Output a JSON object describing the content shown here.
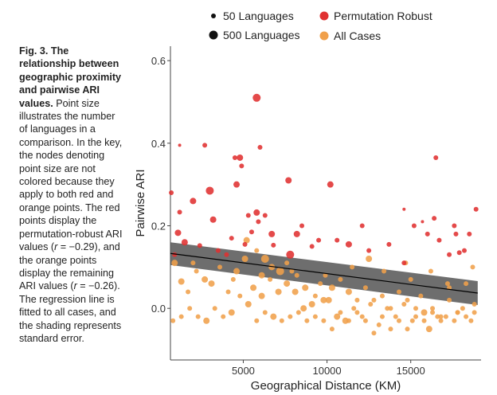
{
  "caption": {
    "figure_label": "Fig. 3.",
    "bold_title": "The relationship between geographic proximity and pairwise ARI values.",
    "body_part1": "Point size illustrates the number of languages in a comparison. In the key, the nodes denoting point size are not colored because they apply to both red and orange points. The red points display the permutation-robust ARI values (",
    "r_symbol": "r",
    "r_red": " = −0.29",
    "body_part2": "), and the orange points display the remaining ARI values (",
    "r_orange": " = −0.26",
    "body_part3": "). The regression line is fitted to all cases, and the shading represents standard error."
  },
  "legend": {
    "size_small_label": "50 Languages",
    "size_large_label": "500 Languages",
    "red_label": "Permutation Robust",
    "orange_label": "All Cases"
  },
  "colors": {
    "red": "#e03131",
    "orange": "#f0a04b",
    "ribbon": "#555555",
    "line": "#000000"
  },
  "chart_data": {
    "type": "scatter",
    "xlabel": "Geographical Distance (KM)",
    "ylabel": "Pairwise ARI",
    "xlim": [
      650,
      19200
    ],
    "ylim": [
      -0.125,
      0.635
    ],
    "xticks": [
      5000,
      10000,
      15000
    ],
    "xtick_labels": [
      "5000",
      "10000",
      "15000"
    ],
    "yticks": [
      0.0,
      0.2,
      0.4,
      0.6
    ],
    "ytick_labels": [
      "0.0",
      "0.2",
      "0.4",
      "0.6"
    ],
    "grid": false,
    "legend_position": "top",
    "regression": {
      "x": [
        650,
        19000
      ],
      "y": [
        0.133,
        0.037
      ],
      "se_upper": [
        0.16,
        0.066
      ],
      "se_lower": [
        0.105,
        0.008
      ]
    },
    "series": [
      {
        "name": "Permutation Robust",
        "color": "red",
        "points": [
          [
            5800,
            0.51,
            5
          ],
          [
            4800,
            0.365,
            4
          ],
          [
            2700,
            0.395,
            3
          ],
          [
            1200,
            0.395,
            2
          ],
          [
            6000,
            0.39,
            3
          ],
          [
            4500,
            0.365,
            3
          ],
          [
            4900,
            0.345,
            3
          ],
          [
            3000,
            0.285,
            5
          ],
          [
            4600,
            0.3,
            4
          ],
          [
            7700,
            0.31,
            4
          ],
          [
            10200,
            0.3,
            4
          ],
          [
            700,
            0.28,
            3
          ],
          [
            2000,
            0.26,
            4
          ],
          [
            5800,
            0.232,
            4
          ],
          [
            6300,
            0.225,
            3
          ],
          [
            1200,
            0.233,
            3
          ],
          [
            5300,
            0.225,
            3
          ],
          [
            3200,
            0.215,
            4
          ],
          [
            5900,
            0.21,
            3
          ],
          [
            1100,
            0.183,
            4
          ],
          [
            8500,
            0.2,
            3
          ],
          [
            12100,
            0.2,
            3
          ],
          [
            16400,
            0.218,
            3
          ],
          [
            16500,
            0.365,
            3
          ],
          [
            18900,
            0.24,
            3
          ],
          [
            5500,
            0.185,
            3
          ],
          [
            6700,
            0.18,
            4
          ],
          [
            8200,
            0.18,
            4
          ],
          [
            9500,
            0.165,
            3
          ],
          [
            11300,
            0.155,
            4
          ],
          [
            13700,
            0.155,
            3
          ],
          [
            10600,
            0.165,
            3
          ],
          [
            4300,
            0.17,
            3
          ],
          [
            1500,
            0.16,
            4
          ],
          [
            7800,
            0.13,
            5
          ],
          [
            2400,
            0.152,
            3
          ],
          [
            3500,
            0.14,
            3
          ],
          [
            4000,
            0.13,
            3
          ],
          [
            5100,
            0.155,
            3
          ],
          [
            6800,
            0.153,
            3
          ],
          [
            9100,
            0.15,
            3
          ],
          [
            12500,
            0.14,
            3
          ],
          [
            14600,
            0.11,
            3
          ],
          [
            15200,
            0.2,
            3
          ],
          [
            16000,
            0.18,
            3
          ],
          [
            16700,
            0.165,
            3
          ],
          [
            17300,
            0.13,
            3
          ],
          [
            17700,
            0.18,
            3
          ],
          [
            18500,
            0.18,
            3
          ],
          [
            17600,
            0.2,
            3
          ],
          [
            18200,
            0.14,
            3
          ],
          [
            15700,
            0.21,
            2
          ],
          [
            14600,
            0.24,
            2
          ],
          [
            17900,
            0.135,
            3
          ],
          [
            900,
            0.13,
            3
          ]
        ]
      },
      {
        "name": "All Cases",
        "color": "orange",
        "points": [
          [
            5200,
            0.165,
            4
          ],
          [
            5800,
            0.14,
            3
          ],
          [
            6300,
            0.12,
            5
          ],
          [
            6700,
            0.1,
            4
          ],
          [
            7200,
            0.09,
            5
          ],
          [
            7600,
            0.06,
            4
          ],
          [
            8200,
            0.08,
            3
          ],
          [
            8700,
            0.05,
            4
          ],
          [
            9300,
            0.03,
            3
          ],
          [
            9800,
            0.02,
            4
          ],
          [
            10300,
            0.05,
            4
          ],
          [
            10800,
            0.07,
            3
          ],
          [
            11300,
            0.04,
            4
          ],
          [
            11800,
            0.02,
            3
          ],
          [
            12300,
            0.05,
            3
          ],
          [
            12800,
            0.02,
            3
          ],
          [
            13300,
            0.03,
            3
          ],
          [
            13800,
            0.0,
            3
          ],
          [
            14300,
            0.04,
            3
          ],
          [
            14800,
            0.02,
            3
          ],
          [
            15300,
            0.0,
            3
          ],
          [
            15800,
            -0.01,
            4
          ],
          [
            16300,
            0.0,
            3
          ],
          [
            16800,
            -0.02,
            3
          ],
          [
            17300,
            0.05,
            3
          ],
          [
            17800,
            -0.01,
            3
          ],
          [
            18300,
            -0.02,
            3
          ],
          [
            18800,
            0.01,
            3
          ],
          [
            900,
            0.11,
            4
          ],
          [
            1300,
            0.065,
            4
          ],
          [
            1700,
            0.04,
            3
          ],
          [
            2200,
            0.09,
            3
          ],
          [
            2700,
            0.07,
            4
          ],
          [
            3100,
            0.06,
            4
          ],
          [
            3600,
            0.1,
            3
          ],
          [
            4100,
            0.04,
            3
          ],
          [
            4600,
            0.09,
            4
          ],
          [
            5100,
            0.12,
            4
          ],
          [
            5600,
            0.05,
            4
          ],
          [
            6100,
            0.03,
            4
          ],
          [
            6600,
            0.07,
            3
          ],
          [
            7100,
            0.04,
            4
          ],
          [
            7600,
            0.11,
            3
          ],
          [
            8100,
            0.04,
            4
          ],
          [
            8600,
            0.0,
            4
          ],
          [
            9100,
            0.01,
            4
          ],
          [
            9600,
            0.06,
            3
          ],
          [
            10100,
            0.02,
            4
          ],
          [
            10600,
            -0.02,
            4
          ],
          [
            11100,
            -0.03,
            4
          ],
          [
            11600,
            0.0,
            3
          ],
          [
            12100,
            -0.02,
            3
          ],
          [
            12600,
            0.01,
            3
          ],
          [
            13100,
            -0.04,
            3
          ],
          [
            13600,
            0.0,
            3
          ],
          [
            14100,
            -0.02,
            3
          ],
          [
            14600,
            0.01,
            3
          ],
          [
            15100,
            -0.03,
            3
          ],
          [
            15600,
            0.03,
            3
          ],
          [
            16100,
            -0.05,
            4
          ],
          [
            16600,
            -0.02,
            3
          ],
          [
            17100,
            -0.02,
            3
          ],
          [
            17600,
            -0.03,
            3
          ],
          [
            18100,
            0.0,
            3
          ],
          [
            18600,
            -0.03,
            3
          ],
          [
            800,
            -0.03,
            3
          ],
          [
            1300,
            -0.02,
            3
          ],
          [
            1800,
            0.0,
            3
          ],
          [
            2300,
            -0.02,
            3
          ],
          [
            2800,
            -0.03,
            4
          ],
          [
            3300,
            0.0,
            3
          ],
          [
            3800,
            -0.02,
            3
          ],
          [
            4300,
            -0.01,
            4
          ],
          [
            4800,
            0.03,
            3
          ],
          [
            5300,
            0.01,
            4
          ],
          [
            5800,
            -0.03,
            3
          ],
          [
            6300,
            -0.01,
            3
          ],
          [
            6800,
            -0.02,
            4
          ],
          [
            7300,
            -0.03,
            3
          ],
          [
            7800,
            -0.02,
            3
          ],
          [
            8300,
            -0.01,
            3
          ],
          [
            8800,
            -0.03,
            3
          ],
          [
            9300,
            -0.02,
            3
          ],
          [
            9800,
            -0.03,
            3
          ],
          [
            10300,
            -0.05,
            3
          ],
          [
            10800,
            -0.01,
            3
          ],
          [
            11300,
            -0.03,
            3
          ],
          [
            11800,
            -0.01,
            3
          ],
          [
            12300,
            -0.03,
            3
          ],
          [
            12800,
            -0.06,
            3
          ],
          [
            13300,
            -0.02,
            3
          ],
          [
            13800,
            -0.05,
            3
          ],
          [
            14300,
            -0.03,
            3
          ],
          [
            14800,
            -0.05,
            3
          ],
          [
            15300,
            -0.02,
            3
          ],
          [
            15800,
            -0.03,
            3
          ],
          [
            16300,
            -0.01,
            3
          ],
          [
            16800,
            -0.03,
            3
          ],
          [
            17300,
            0.02,
            3
          ],
          [
            17800,
            -0.01,
            3
          ],
          [
            18300,
            0.06,
            3
          ],
          [
            18800,
            -0.01,
            3
          ],
          [
            4400,
            0.07,
            3
          ],
          [
            7900,
            0.09,
            3
          ],
          [
            12500,
            0.12,
            4
          ],
          [
            14700,
            0.11,
            3
          ],
          [
            16200,
            0.09,
            3
          ],
          [
            17200,
            0.06,
            3
          ],
          [
            18700,
            0.1,
            3
          ],
          [
            2000,
            0.11,
            3
          ],
          [
            9900,
            0.08,
            3
          ],
          [
            11500,
            0.1,
            3
          ],
          [
            13400,
            0.09,
            3
          ],
          [
            15000,
            0.07,
            3
          ],
          [
            6100,
            0.08,
            4
          ]
        ]
      }
    ]
  }
}
